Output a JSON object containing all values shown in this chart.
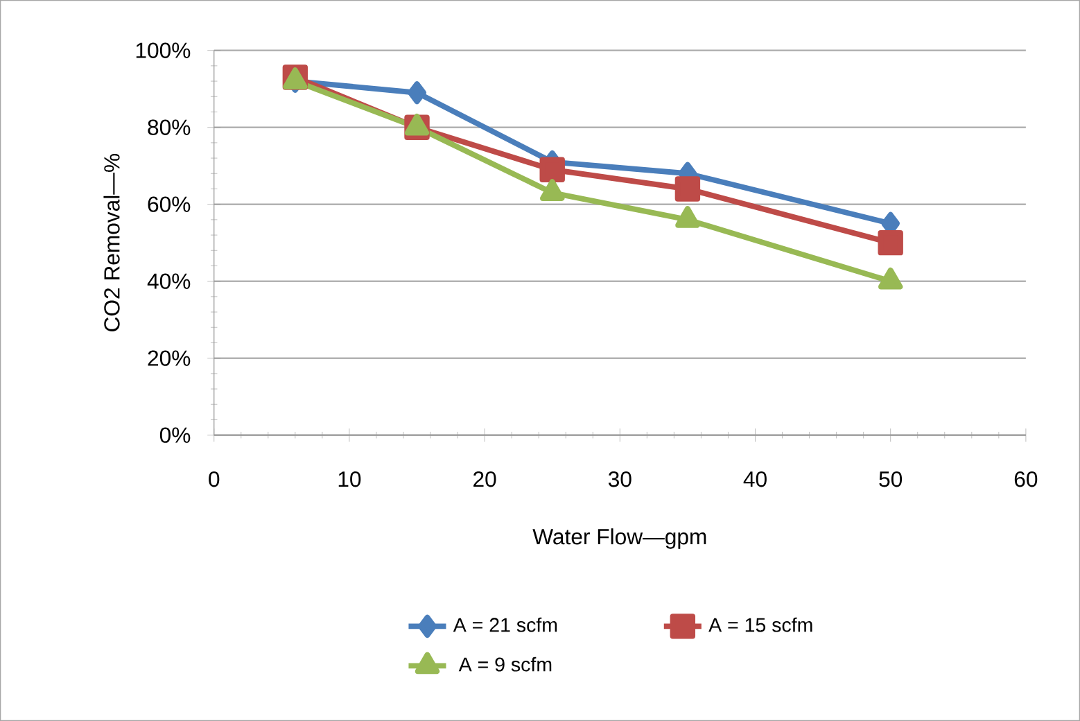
{
  "chart_data": {
    "type": "line",
    "xlabel": "Water Flow—gpm",
    "ylabel": "CO2 Removal—%",
    "xlim": [
      0,
      60
    ],
    "xticks": [
      0,
      10,
      20,
      30,
      40,
      50,
      60
    ],
    "ylim": [
      0,
      100
    ],
    "yticks": [
      {
        "value": 0,
        "label": "0%"
      },
      {
        "value": 20,
        "label": "20%"
      },
      {
        "value": 40,
        "label": "40%"
      },
      {
        "value": 60,
        "label": "60%"
      },
      {
        "value": 80,
        "label": "80%"
      },
      {
        "value": 100,
        "label": "100%"
      }
    ],
    "grid": "y",
    "legend": "bottom",
    "series": [
      {
        "name": "A = 21 scfm",
        "color": "#4a7ebb",
        "marker": "diamond",
        "x": [
          6,
          15,
          25,
          35,
          50
        ],
        "values": [
          92,
          89,
          71,
          68,
          55
        ]
      },
      {
        "name": "A = 15 scfm",
        "color": "#be4b48",
        "marker": "square",
        "x": [
          6,
          15,
          25,
          35,
          50
        ],
        "values": [
          93,
          80,
          69,
          64,
          50
        ]
      },
      {
        "name": "A = 9 scfm",
        "color": "#98b954",
        "marker": "triangle",
        "x": [
          6,
          15,
          25,
          35,
          50
        ],
        "values": [
          92,
          80,
          63,
          56,
          40
        ]
      }
    ]
  }
}
